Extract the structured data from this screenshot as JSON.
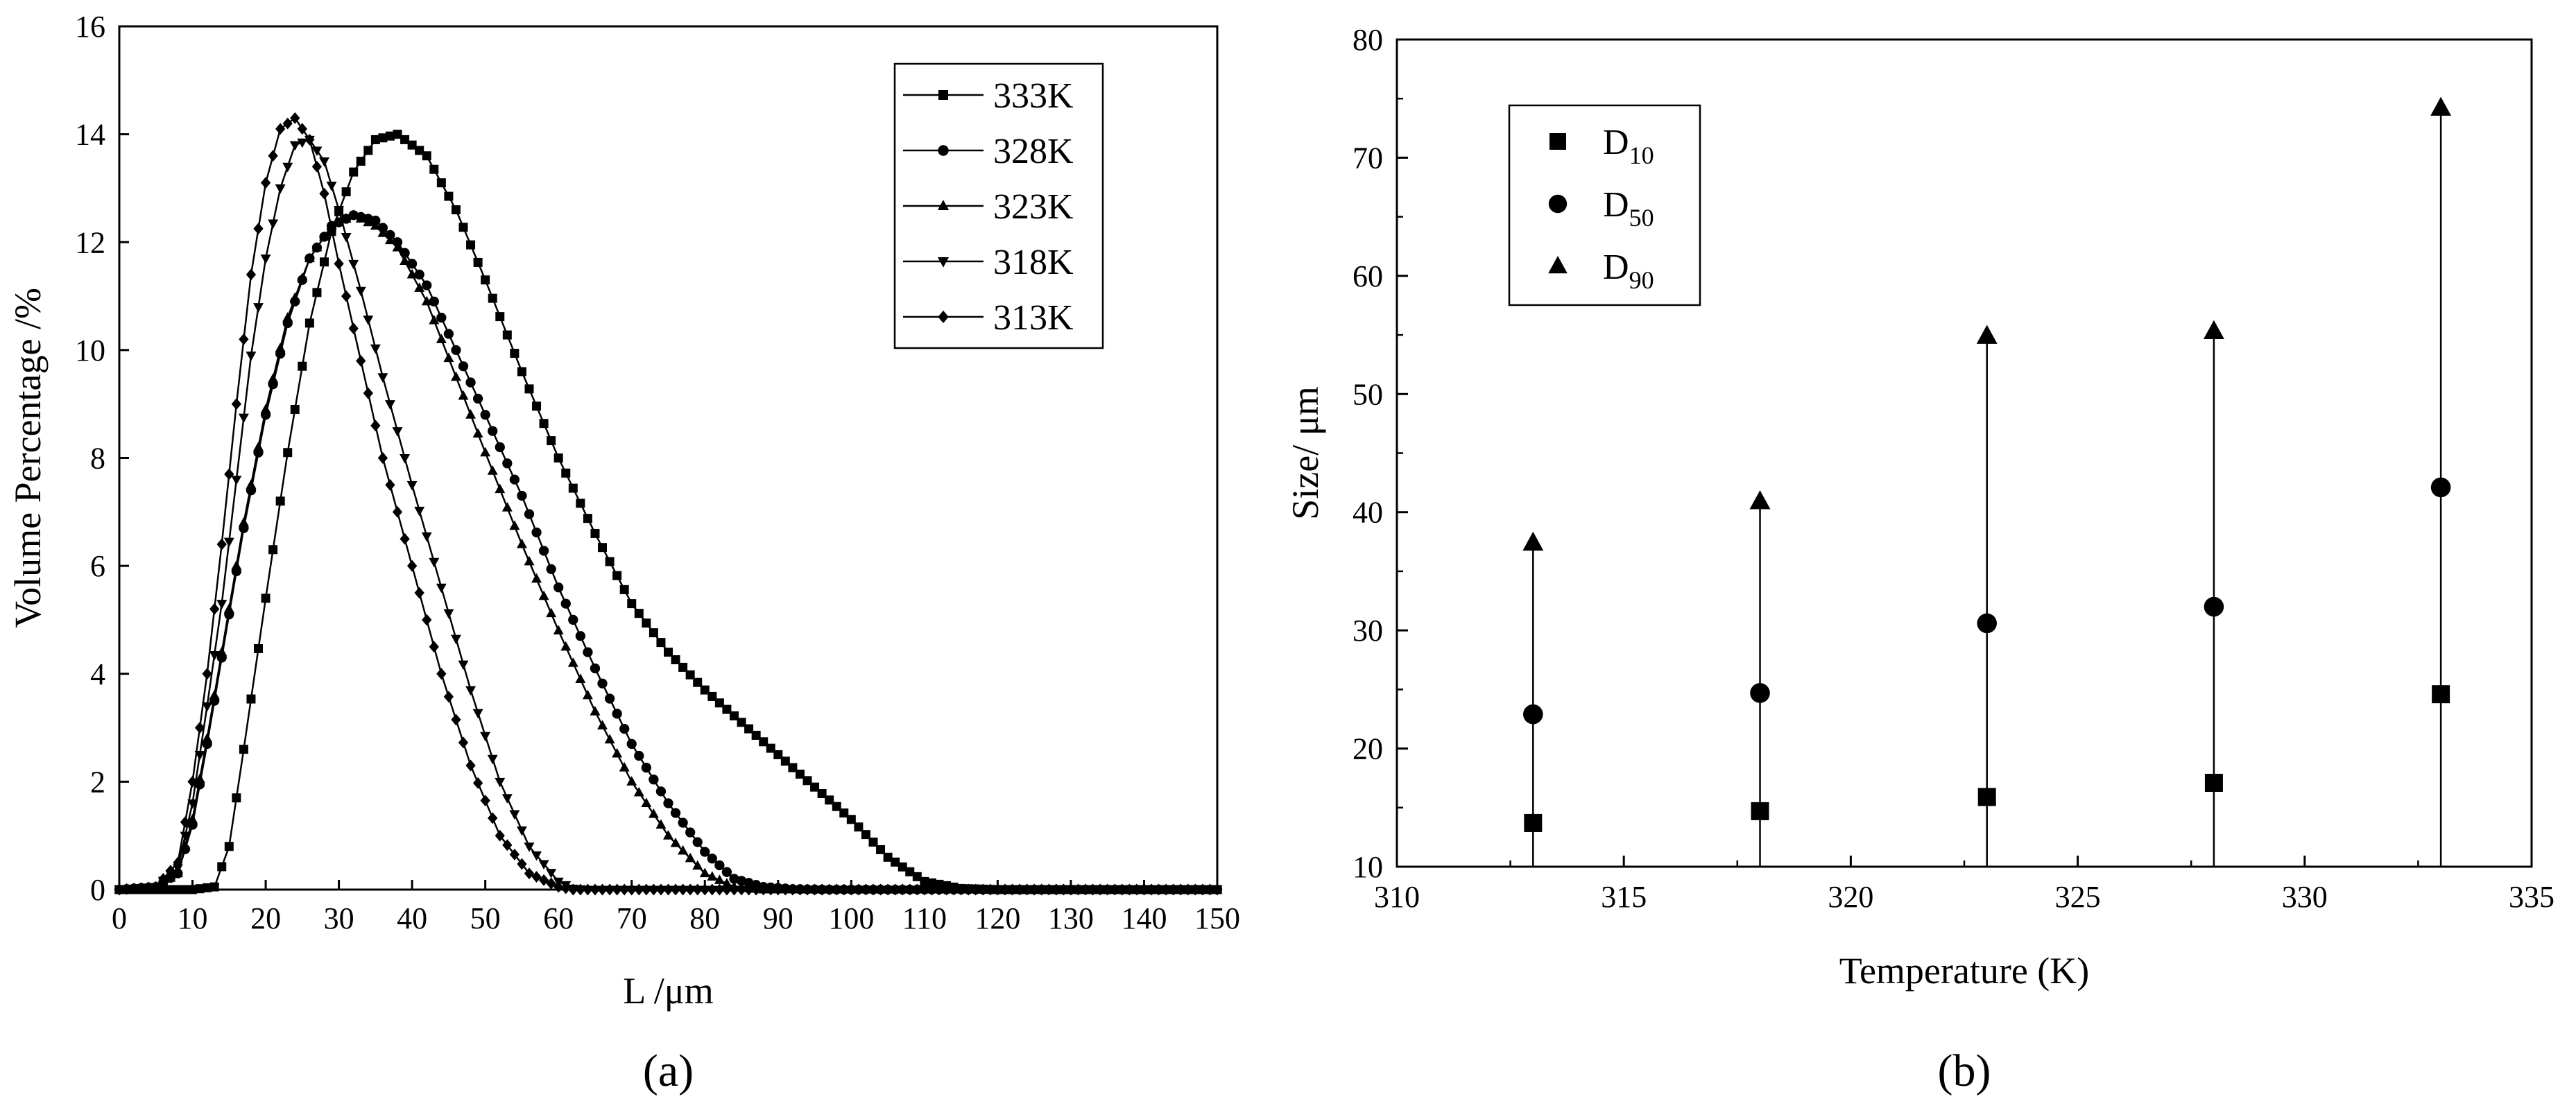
{
  "panel_labels": {
    "a": "(a)",
    "b": "(b)"
  },
  "chart_data": [
    {
      "type": "line",
      "panel": "a",
      "title": "",
      "xlabel": "L /μm",
      "ylabel": "Volume Percentage /%",
      "xlim": [
        0,
        150
      ],
      "ylim": [
        0,
        16
      ],
      "xticks": [
        0,
        10,
        20,
        30,
        40,
        50,
        60,
        70,
        80,
        90,
        100,
        110,
        120,
        130,
        140,
        150
      ],
      "yticks": [
        0,
        2,
        4,
        6,
        8,
        10,
        12,
        14,
        16
      ],
      "grid": false,
      "legend_position": "top-right",
      "series": [
        {
          "name": "333K",
          "marker": "square",
          "x": [
            0,
            10,
            13,
            15,
            17,
            20,
            23,
            26,
            29,
            32,
            35,
            38,
            42,
            46,
            50,
            55,
            60,
            65,
            70,
            75,
            80,
            85,
            90,
            95,
            100,
            105,
            110,
            115,
            120,
            150
          ],
          "values": [
            0,
            0,
            0.05,
            0.8,
            2.6,
            5.4,
            8.1,
            10.5,
            12.2,
            13.3,
            13.9,
            14.0,
            13.6,
            12.6,
            11.3,
            9.6,
            8.0,
            6.6,
            5.3,
            4.4,
            3.7,
            3.1,
            2.5,
            1.9,
            1.3,
            0.6,
            0.15,
            0.02,
            0,
            0
          ]
        },
        {
          "name": "328K",
          "marker": "circle",
          "x": [
            0,
            5,
            8,
            10,
            12,
            14,
            17,
            20,
            23,
            26,
            29,
            32,
            35,
            38,
            42,
            46,
            50,
            55,
            60,
            65,
            70,
            75,
            80,
            84,
            88,
            92,
            96,
            100,
            150
          ],
          "values": [
            0,
            0.05,
            0.3,
            1.2,
            2.7,
            4.3,
            6.7,
            8.8,
            10.5,
            11.7,
            12.3,
            12.5,
            12.4,
            12.0,
            11.2,
            10.0,
            8.8,
            7.3,
            5.6,
            4.1,
            2.7,
            1.6,
            0.7,
            0.2,
            0.05,
            0.01,
            0,
            0,
            0
          ]
        },
        {
          "name": "323K",
          "marker": "triangle-up",
          "x": [
            0,
            5,
            8,
            10,
            12,
            14,
            17,
            20,
            23,
            26,
            29,
            32,
            35,
            38,
            42,
            46,
            50,
            55,
            60,
            65,
            70,
            75,
            80,
            84,
            88,
            150
          ],
          "values": [
            0,
            0.05,
            0.3,
            1.3,
            2.8,
            4.4,
            6.8,
            8.9,
            10.6,
            11.7,
            12.3,
            12.5,
            12.3,
            11.9,
            10.9,
            9.5,
            8.1,
            6.4,
            4.8,
            3.3,
            2.0,
            1.0,
            0.3,
            0.05,
            0,
            0
          ]
        },
        {
          "name": "318K",
          "marker": "triangle-down",
          "x": [
            0,
            5,
            8,
            10,
            12,
            14,
            16,
            18,
            20,
            22,
            24,
            26,
            28,
            30,
            33,
            36,
            40,
            44,
            48,
            52,
            56,
            60,
            62,
            64,
            150
          ],
          "values": [
            0,
            0.05,
            0.4,
            1.6,
            3.4,
            5.3,
            7.6,
            9.9,
            11.7,
            13.0,
            13.8,
            13.9,
            13.5,
            12.6,
            11.1,
            9.5,
            7.5,
            5.6,
            3.7,
            2.0,
            0.8,
            0.15,
            0.02,
            0,
            0
          ]
        },
        {
          "name": "313K",
          "marker": "diamond",
          "x": [
            0,
            5,
            8,
            10,
            12,
            14,
            16,
            18,
            20,
            22,
            24,
            26,
            28,
            30,
            33,
            36,
            40,
            44,
            48,
            52,
            56,
            60,
            62,
            150
          ],
          "values": [
            0,
            0.05,
            0.5,
            2.0,
            4.0,
            6.4,
            9.0,
            11.4,
            13.1,
            14.1,
            14.3,
            13.9,
            12.9,
            11.6,
            9.8,
            8.0,
            6.0,
            4.0,
            2.3,
            1.0,
            0.3,
            0.05,
            0,
            0
          ]
        }
      ]
    },
    {
      "type": "scatter",
      "panel": "b",
      "title": "",
      "xlabel": "Temperature (K)",
      "ylabel": "Size/ μm",
      "xlim": [
        310,
        335
      ],
      "ylim": [
        10,
        80
      ],
      "xticks": [
        310,
        315,
        320,
        325,
        330,
        335
      ],
      "yticks": [
        10,
        20,
        30,
        40,
        50,
        60,
        70,
        80
      ],
      "grid": false,
      "legend_position": "top-left",
      "x": [
        313,
        318,
        323,
        328,
        333
      ],
      "series": [
        {
          "name": "D10",
          "name_main": "D",
          "name_sub": "10",
          "marker": "square",
          "values": [
            13.7,
            14.7,
            15.9,
            17.1,
            24.6
          ]
        },
        {
          "name": "D50",
          "name_main": "D",
          "name_sub": "50",
          "marker": "circle",
          "values": [
            22.9,
            24.7,
            30.6,
            32.0,
            42.1
          ]
        },
        {
          "name": "D90",
          "name_main": "D",
          "name_sub": "90",
          "marker": "triangle-up",
          "values": [
            37.4,
            40.9,
            54.9,
            55.3,
            74.2
          ]
        }
      ]
    }
  ]
}
